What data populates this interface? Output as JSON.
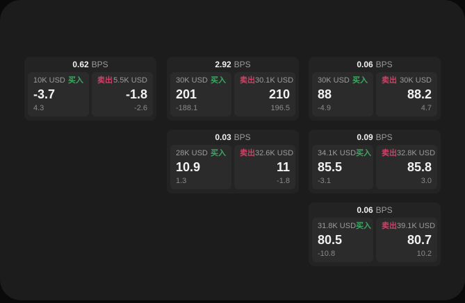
{
  "theme": {
    "bg": "#0a0a0a",
    "window_bg": "#1c1c1c",
    "card_bg": "#232323",
    "panel_bg": "#2b2b2b",
    "text_primary": "#f2f2f2",
    "text_muted": "#9c9c9c",
    "buy_color": "#3ca763",
    "sell_color": "#cf4066"
  },
  "labels": {
    "bps": "BPS",
    "buy": "买入",
    "sell": "卖出"
  },
  "cards": [
    {
      "bps": "0.62",
      "buy": {
        "amount": "10K USD",
        "price": "-3.7",
        "delta": "4.3"
      },
      "sell": {
        "amount": "5.5K USD",
        "price": "-1.8",
        "delta": "-2.6"
      }
    },
    {
      "bps": "2.92",
      "buy": {
        "amount": "30K USD",
        "price": "201",
        "delta": "-188.1"
      },
      "sell": {
        "amount": "30.1K USD",
        "price": "210",
        "delta": "196.5"
      }
    },
    {
      "bps": "0.06",
      "buy": {
        "amount": "30K USD",
        "price": "88",
        "delta": "-4.9"
      },
      "sell": {
        "amount": "30K USD",
        "price": "88.2",
        "delta": "4.7"
      }
    },
    {
      "bps": "0.03",
      "buy": {
        "amount": "28K USD",
        "price": "10.9",
        "delta": "1.3"
      },
      "sell": {
        "amount": "32.6K USD",
        "price": "11",
        "delta": "-1.8"
      }
    },
    {
      "bps": "0.09",
      "buy": {
        "amount": "34.1K USD",
        "price": "85.5",
        "delta": "-3.1"
      },
      "sell": {
        "amount": "32.8K USD",
        "price": "85.8",
        "delta": "3.0"
      }
    },
    {
      "bps": "0.06",
      "buy": {
        "amount": "31.8K USD",
        "price": "80.5",
        "delta": "-10.8"
      },
      "sell": {
        "amount": "39.1K USD",
        "price": "80.7",
        "delta": "10.2"
      }
    }
  ]
}
